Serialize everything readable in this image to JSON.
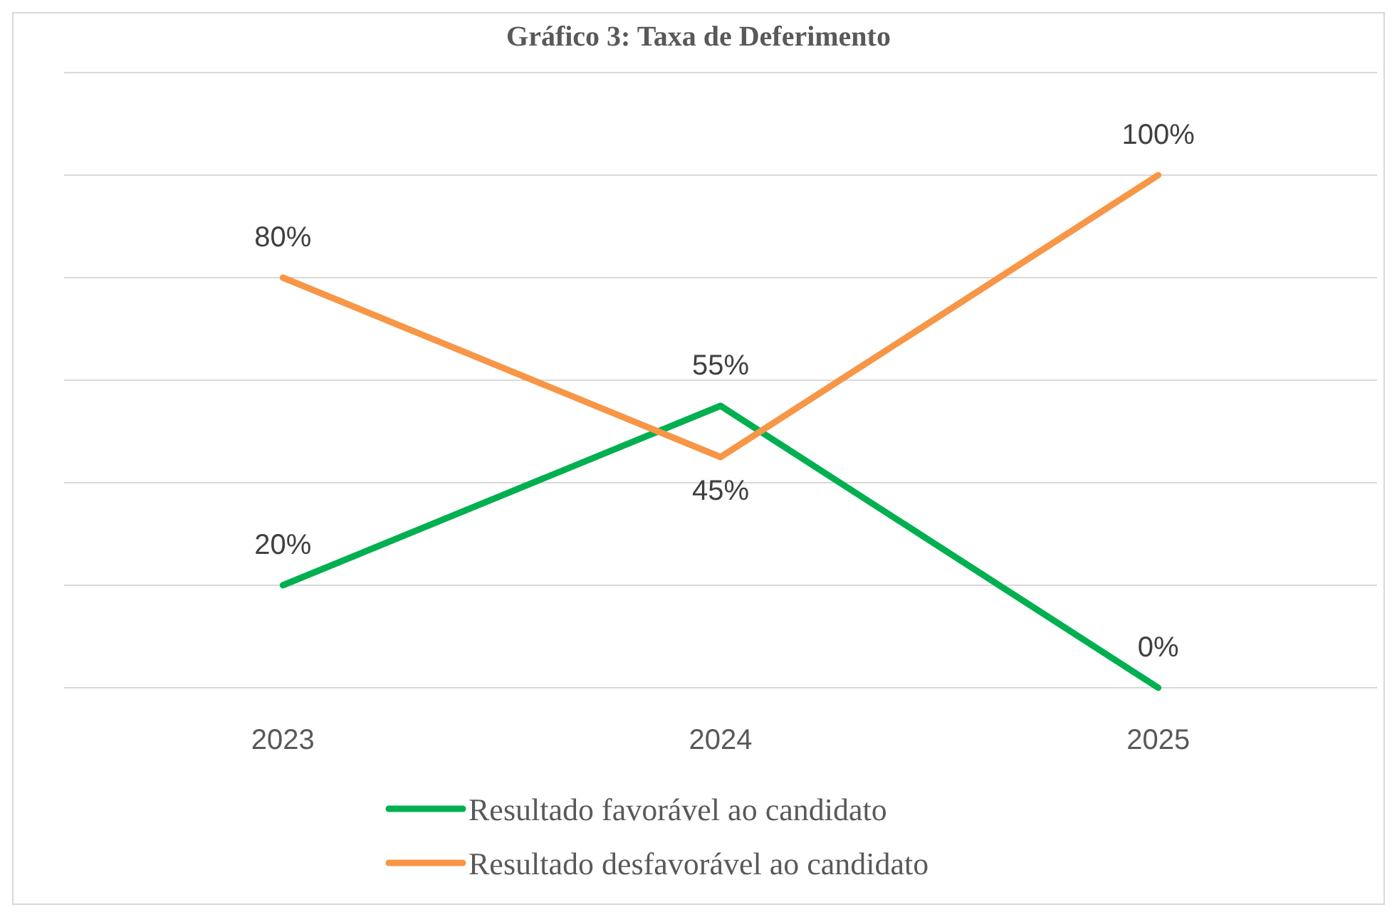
{
  "chart_data": {
    "type": "line",
    "title": "Gráfico 3: Taxa de Deferimento",
    "categories": [
      "2023",
      "2024",
      "2025"
    ],
    "series": [
      {
        "name": "Resultado favorável ao candidato",
        "color": "#00b050",
        "values": [
          20,
          55,
          0
        ],
        "value_labels": [
          "20%",
          "55%",
          "0%"
        ]
      },
      {
        "name": "Resultado desfavorável ao candidato",
        "color": "#f79646",
        "values": [
          80,
          45,
          100
        ],
        "value_labels": [
          "80%",
          "45%",
          "100%"
        ]
      }
    ],
    "ylim": [
      0,
      120
    ],
    "yticks": [
      {
        "value": 0,
        "label": null
      },
      {
        "value": 20,
        "label": null
      },
      {
        "value": 40,
        "label": null
      },
      {
        "value": 60,
        "label": null
      },
      {
        "value": 80,
        "label": null
      },
      {
        "value": 100,
        "label": null
      },
      {
        "value": 120,
        "label": null
      }
    ],
    "tick_labels": "x",
    "grid": "y",
    "legend": "bottom",
    "marker": "none",
    "line_style": "solid"
  }
}
